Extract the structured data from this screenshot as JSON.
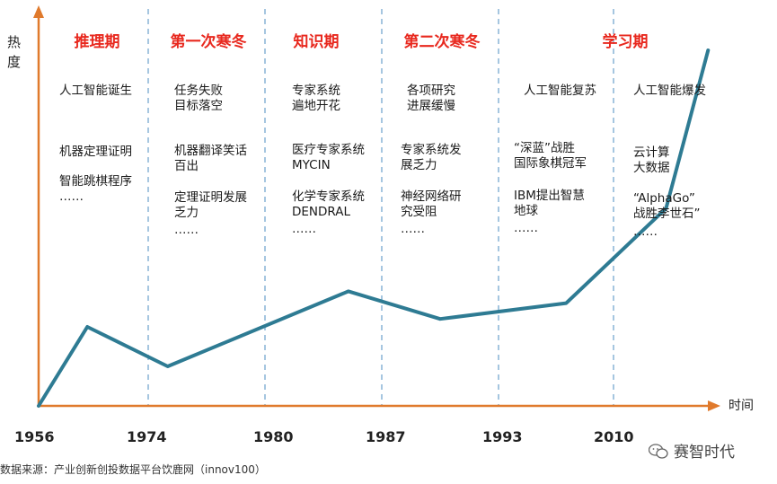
{
  "chart_data": {
    "type": "line",
    "ylabel": "热度",
    "xlabel": "时间",
    "year_marks": [
      "1956",
      "1974",
      "1980",
      "1987",
      "1993",
      "2010"
    ],
    "series": [
      {
        "values": [
          {
            "x": 1956,
            "y": 0
          },
          {
            "x": 1964,
            "y": 20
          },
          {
            "x": 1975,
            "y": 10
          },
          {
            "x": 1985,
            "y": 29
          },
          {
            "x": 1990,
            "y": 22
          },
          {
            "x": 2003,
            "y": 26
          },
          {
            "x": 2015,
            "y": 50
          },
          {
            "x": 2019,
            "y": 90
          }
        ]
      }
    ],
    "eras": [
      {
        "title": "推理期",
        "events": [
          "人工智能诞生",
          "机器定理证明",
          "智能跳棋程序\n……"
        ]
      },
      {
        "title": "第一次寒冬",
        "events": [
          "任务失败\n目标落空",
          "机器翻译笑话\n百出",
          "定理证明发展\n乏力",
          "……"
        ]
      },
      {
        "title": "知识期",
        "events": [
          "专家系统\n遍地开花",
          "医疗专家系统\nMYCIN",
          "化学专家系统\nDENDRAL",
          "……"
        ]
      },
      {
        "title": "第二次寒冬",
        "events": [
          "各项研究\n进展缓慢",
          "专家系统发\n展乏力",
          "神经网络研\n究受阻",
          "……"
        ]
      },
      {
        "title": "学习期",
        "events": [
          "人工智能复苏",
          "人工智能爆发",
          "“深蓝”战胜\n国际象棋冠军",
          "IBM提出智慧\n地球",
          "……",
          "云计算\n大数据",
          "“AlphaGo”\n战胜李世石”",
          "……"
        ]
      }
    ],
    "colors": {
      "line": "#2e7b93",
      "axis": "#e07a2c",
      "divider": "#8fb8d8",
      "title": "#e8281e"
    }
  },
  "source": "数据来源：产业创新创投数据平台饮鹿网（innov100）",
  "brand": "赛智时代"
}
